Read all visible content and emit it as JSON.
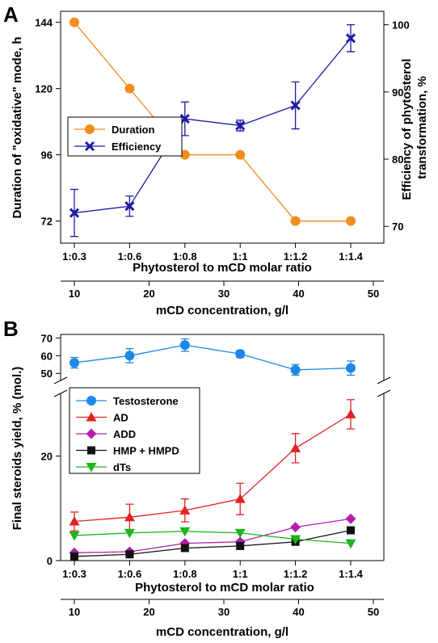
{
  "chart_data": [
    {
      "panel": "A",
      "type": "line",
      "categories": [
        "1:0.3",
        "1:0.6",
        "1:0.8",
        "1:1",
        "1:1.2",
        "1:1.4"
      ],
      "xlabel": "Phytosterol to mCD molar ratio",
      "secondary_x": {
        "label": "mCD concentration, g/l",
        "ticks": [
          10,
          20,
          30,
          40,
          50
        ],
        "range": [
          10,
          50
        ]
      },
      "ylabel": "Duration of \"oxidative\" mode, h",
      "ylim": [
        64,
        148
      ],
      "yticks": [
        72,
        96,
        120,
        144
      ],
      "ylabel_right": [
        "Efficiency of phytosterol",
        "transformation, %"
      ],
      "ylim_right": [
        67.5,
        102
      ],
      "yticks_right": [
        70,
        80,
        90,
        100
      ],
      "legend_position": "center-left",
      "series": [
        {
          "name": "Duration",
          "axis": "left",
          "color": "#F28C1E",
          "marker": "circle",
          "values": [
            144,
            120,
            96,
            96,
            72,
            72
          ]
        },
        {
          "name": "Efficiency",
          "axis": "right",
          "color": "#1C1CA6",
          "marker": "x",
          "values": [
            72,
            73,
            86,
            85,
            88,
            98
          ],
          "errors": [
            3.5,
            1.5,
            2.5,
            0.8,
            3.5,
            2
          ]
        }
      ]
    },
    {
      "panel": "B",
      "type": "line",
      "categories": [
        "1:0.3",
        "1:0.6",
        "1:0.8",
        "1:1",
        "1:1.2",
        "1:1.4"
      ],
      "xlabel": "Phytosterol to mCD molar ratio",
      "secondary_x": {
        "label": "mCD concentration, g/l",
        "ticks": [
          10,
          20,
          30,
          40,
          50
        ],
        "range": [
          10,
          50
        ]
      },
      "ylabel": "Final steroids yield, % (mol.)",
      "y_broken_axis": true,
      "ylim_lower": [
        0,
        32
      ],
      "yticks_lower": [
        0,
        20
      ],
      "ylim_upper": [
        46,
        72
      ],
      "yticks_upper": [
        50,
        60,
        70
      ],
      "legend_position": "top-left",
      "series": [
        {
          "name": "Testosterone",
          "color": "#1E88E5",
          "marker": "circle",
          "values": [
            56,
            60,
            66,
            61,
            52,
            53
          ],
          "errors": [
            3,
            4,
            3.5,
            2,
            3,
            4
          ]
        },
        {
          "name": "AD",
          "color": "#E32222",
          "marker": "triangle-up",
          "values": [
            7.5,
            8.3,
            9.6,
            11.8,
            21.5,
            28
          ],
          "errors": [
            1.8,
            2.5,
            2.2,
            3,
            2.8,
            2.8
          ]
        },
        {
          "name": "ADD",
          "color": "#B01EB0",
          "marker": "diamond",
          "values": [
            1.5,
            1.7,
            3.3,
            3.6,
            6.4,
            8
          ]
        },
        {
          "name": "HMP + HMPD",
          "color": "#111111",
          "marker": "square",
          "values": [
            0.8,
            1.2,
            2.4,
            2.8,
            3.6,
            5.8
          ]
        },
        {
          "name": "dTs",
          "color": "#1DB31D",
          "marker": "triangle-down",
          "values": [
            4.8,
            5.3,
            5.6,
            5.3,
            4.1,
            3.3
          ]
        }
      ]
    }
  ]
}
